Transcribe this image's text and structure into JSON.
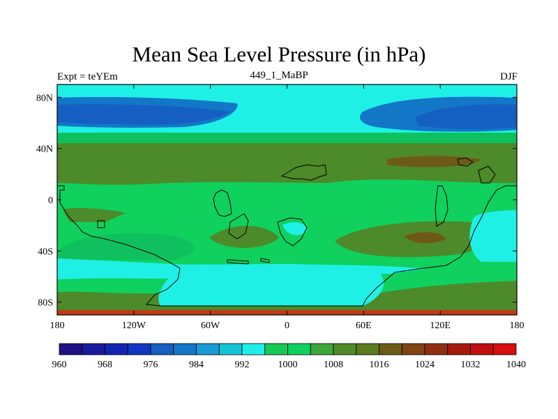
{
  "title": "Mean Sea Level Pressure (in hPa)",
  "left_label": "Expt = teYEm",
  "center_label": "449_1_MaBP",
  "right_label": "DJF",
  "map": {
    "projection": "cylindrical-equidistant",
    "lon_range": [
      -180,
      180
    ],
    "lat_range": [
      -90,
      90
    ],
    "x_ticks": [
      {
        "value": -180,
        "label": "180"
      },
      {
        "value": -120,
        "label": "120W"
      },
      {
        "value": -60,
        "label": "60W"
      },
      {
        "value": 0,
        "label": "0"
      },
      {
        "value": 60,
        "label": "60E"
      },
      {
        "value": 120,
        "label": "120E"
      },
      {
        "value": 180,
        "label": "180"
      }
    ],
    "y_ticks": [
      {
        "value": 80,
        "label": "80N"
      },
      {
        "value": 40,
        "label": "40N"
      },
      {
        "value": 0,
        "label": "0"
      },
      {
        "value": -40,
        "label": "40S"
      },
      {
        "value": -80,
        "label": "80S"
      }
    ]
  },
  "colorbar": {
    "colors": [
      "#1f1185",
      "#1a1a9e",
      "#1424b3",
      "#1238c0",
      "#155fc2",
      "#1277c7",
      "#1a9ad6",
      "#15c3d9",
      "#1df0e8",
      "#16c956",
      "#0fd160",
      "#3ca63a",
      "#4f8a2a",
      "#5c7a20",
      "#6e5a17",
      "#7f4314",
      "#8f2f12",
      "#a6190f",
      "#bf0f0f",
      "#d60f0f"
    ],
    "labels": [
      {
        "index": 1,
        "text": "960"
      },
      {
        "index": 3,
        "text": "968"
      },
      {
        "index": 5,
        "text": "976"
      },
      {
        "index": 7,
        "text": "984"
      },
      {
        "index": 9,
        "text": "992"
      },
      {
        "index": 11,
        "text": "1000"
      },
      {
        "index": 13,
        "text": "1008"
      },
      {
        "index": 15,
        "text": "1016"
      },
      {
        "index": 17,
        "text": "1024"
      },
      {
        "index": 19,
        "text": "1032"
      },
      {
        "index": 21,
        "text": "1040"
      }
    ]
  }
}
